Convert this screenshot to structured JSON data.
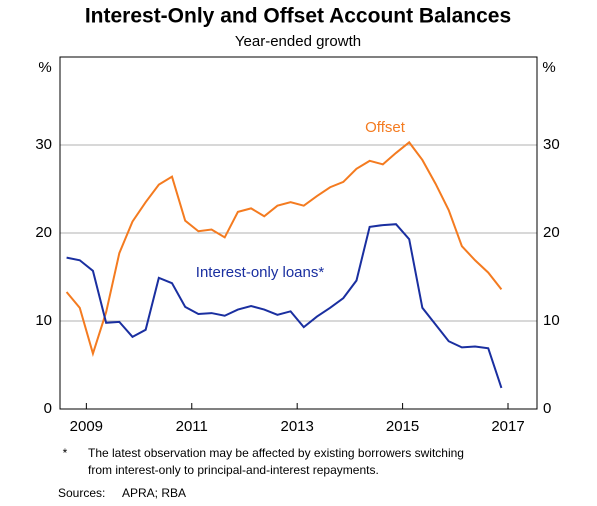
{
  "chart_data": {
    "type": "line",
    "title": "Interest-Only and Offset Account Balances",
    "subtitle": "Year-ended growth",
    "y_unit_left": "%",
    "y_unit_right": "%",
    "x": [
      2008.625,
      2008.875,
      2009.125,
      2009.375,
      2009.625,
      2009.875,
      2010.125,
      2010.375,
      2010.625,
      2010.875,
      2011.125,
      2011.375,
      2011.625,
      2011.875,
      2012.125,
      2012.375,
      2012.625,
      2012.875,
      2013.125,
      2013.375,
      2013.625,
      2013.875,
      2014.125,
      2014.375,
      2014.625,
      2014.875,
      2015.125,
      2015.375,
      2015.625,
      2015.875,
      2016.125,
      2016.375,
      2016.625,
      2016.875
    ],
    "series": [
      {
        "name": "Offset",
        "color": "#f47b20",
        "values": [
          13.3,
          11.5,
          6.3,
          11.0,
          17.7,
          21.3,
          23.5,
          25.5,
          26.4,
          21.4,
          20.2,
          20.4,
          19.5,
          22.4,
          22.8,
          21.9,
          23.1,
          23.5,
          23.1,
          24.2,
          25.2,
          25.8,
          27.3,
          28.2,
          27.8,
          29.1,
          30.3,
          28.3,
          25.6,
          22.6,
          18.5,
          16.9,
          15.5,
          13.6
        ]
      },
      {
        "name": "Interest-only loans*",
        "color": "#1a2fa0",
        "values": [
          17.2,
          16.9,
          15.7,
          9.8,
          9.9,
          8.2,
          9.0,
          14.9,
          14.3,
          11.6,
          10.8,
          10.9,
          10.6,
          11.3,
          11.7,
          11.3,
          10.7,
          11.1,
          9.3,
          10.5,
          11.5,
          12.6,
          14.6,
          20.7,
          20.9,
          21.0,
          19.3,
          11.5,
          9.6,
          7.7,
          7.0,
          7.1,
          6.9,
          2.4
        ]
      }
    ],
    "xlim": [
      2008.5,
      2017.55
    ],
    "xticks": [
      2009,
      2011,
      2013,
      2015,
      2017
    ],
    "ylim": [
      0,
      40
    ],
    "yticks": [
      0,
      10,
      20,
      30
    ],
    "grid": true,
    "notes": {
      "marker": "*",
      "lines": [
        "The latest observation may be affected by existing borrowers switching",
        "from interest-only to principal-and-interest repayments."
      ]
    },
    "sources": {
      "label": "Sources:",
      "text": "APRA; RBA"
    }
  }
}
